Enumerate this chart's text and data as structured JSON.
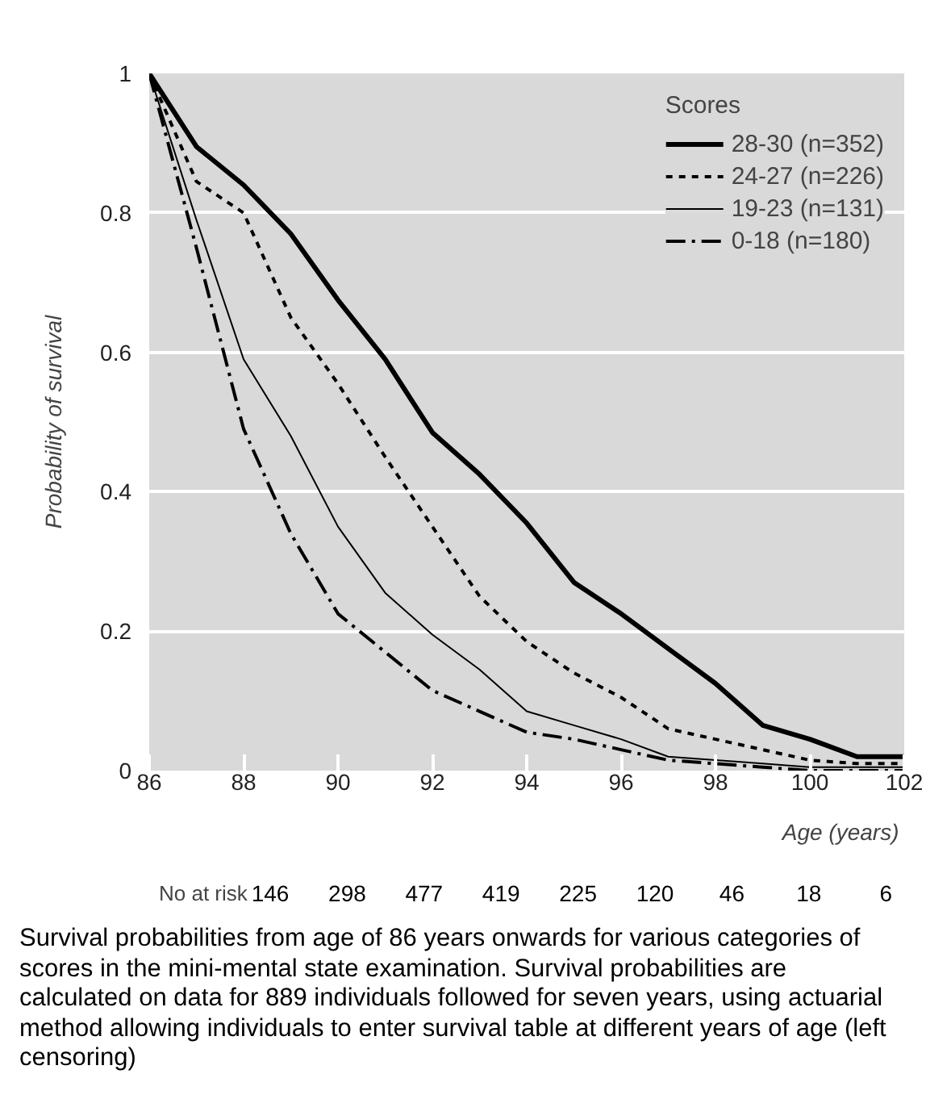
{
  "chart_data": {
    "type": "line",
    "xlabel": "Age (years)",
    "ylabel": "Probability of survival",
    "legend_title": "Scores",
    "legend": "top right",
    "grid": "y",
    "x": [
      86,
      87,
      88,
      89,
      90,
      91,
      92,
      93,
      94,
      95,
      96,
      97,
      98,
      99,
      100,
      101,
      102
    ],
    "xlim": [
      86,
      102
    ],
    "ylim": [
      0,
      1
    ],
    "xticks": [
      86,
      88,
      90,
      92,
      94,
      96,
      98,
      100,
      102
    ],
    "yticks": [
      0,
      0.2,
      0.4,
      0.6,
      0.8,
      1
    ],
    "series": [
      {
        "name": "28-30 (n=352)",
        "color": "#000000",
        "line_style": "solid",
        "values": [
          1,
          0.895,
          0.84,
          0.77,
          0.675,
          0.59,
          0.485,
          0.425,
          0.355,
          0.27,
          0.225,
          0.175,
          0.125,
          0.065,
          0.045,
          0.02,
          0.02
        ]
      },
      {
        "name": "24-27 (n=226)",
        "color": "#000000",
        "line_style": "dotted",
        "values": [
          1,
          0.845,
          0.8,
          0.65,
          0.555,
          0.45,
          0.35,
          0.25,
          0.185,
          0.14,
          0.105,
          0.06,
          0.045,
          0.03,
          0.015,
          0.01,
          0.01
        ]
      },
      {
        "name": "19-23 (n=131)",
        "color": "#000000",
        "line_style": "solid",
        "values": [
          1,
          0.79,
          0.59,
          0.48,
          0.35,
          0.255,
          0.195,
          0.145,
          0.085,
          0.065,
          0.045,
          0.02,
          0.015,
          0.01,
          0.005,
          0.005,
          0.005
        ]
      },
      {
        "name": "0-18 (n=180)",
        "color": "#000000",
        "line_style": "dashed",
        "values": [
          1,
          0.75,
          0.49,
          0.34,
          0.225,
          0.17,
          0.115,
          0.085,
          0.055,
          0.045,
          0.03,
          0.015,
          0.01,
          0.005,
          0,
          0,
          0
        ]
      }
    ],
    "annotations": [
      "No at risk",
      "146",
      "298",
      "477",
      "419",
      "225",
      "120",
      "46",
      "18",
      "6",
      "Survival probabilities from age of 86 years onwards for various categories of scores in the mini-mental state examination. Survival probabilities are calculated on data for 889 individuals followed for seven years, using actuarial method allowing individuals to enter survival table at different years of age (left censoring)"
    ]
  }
}
